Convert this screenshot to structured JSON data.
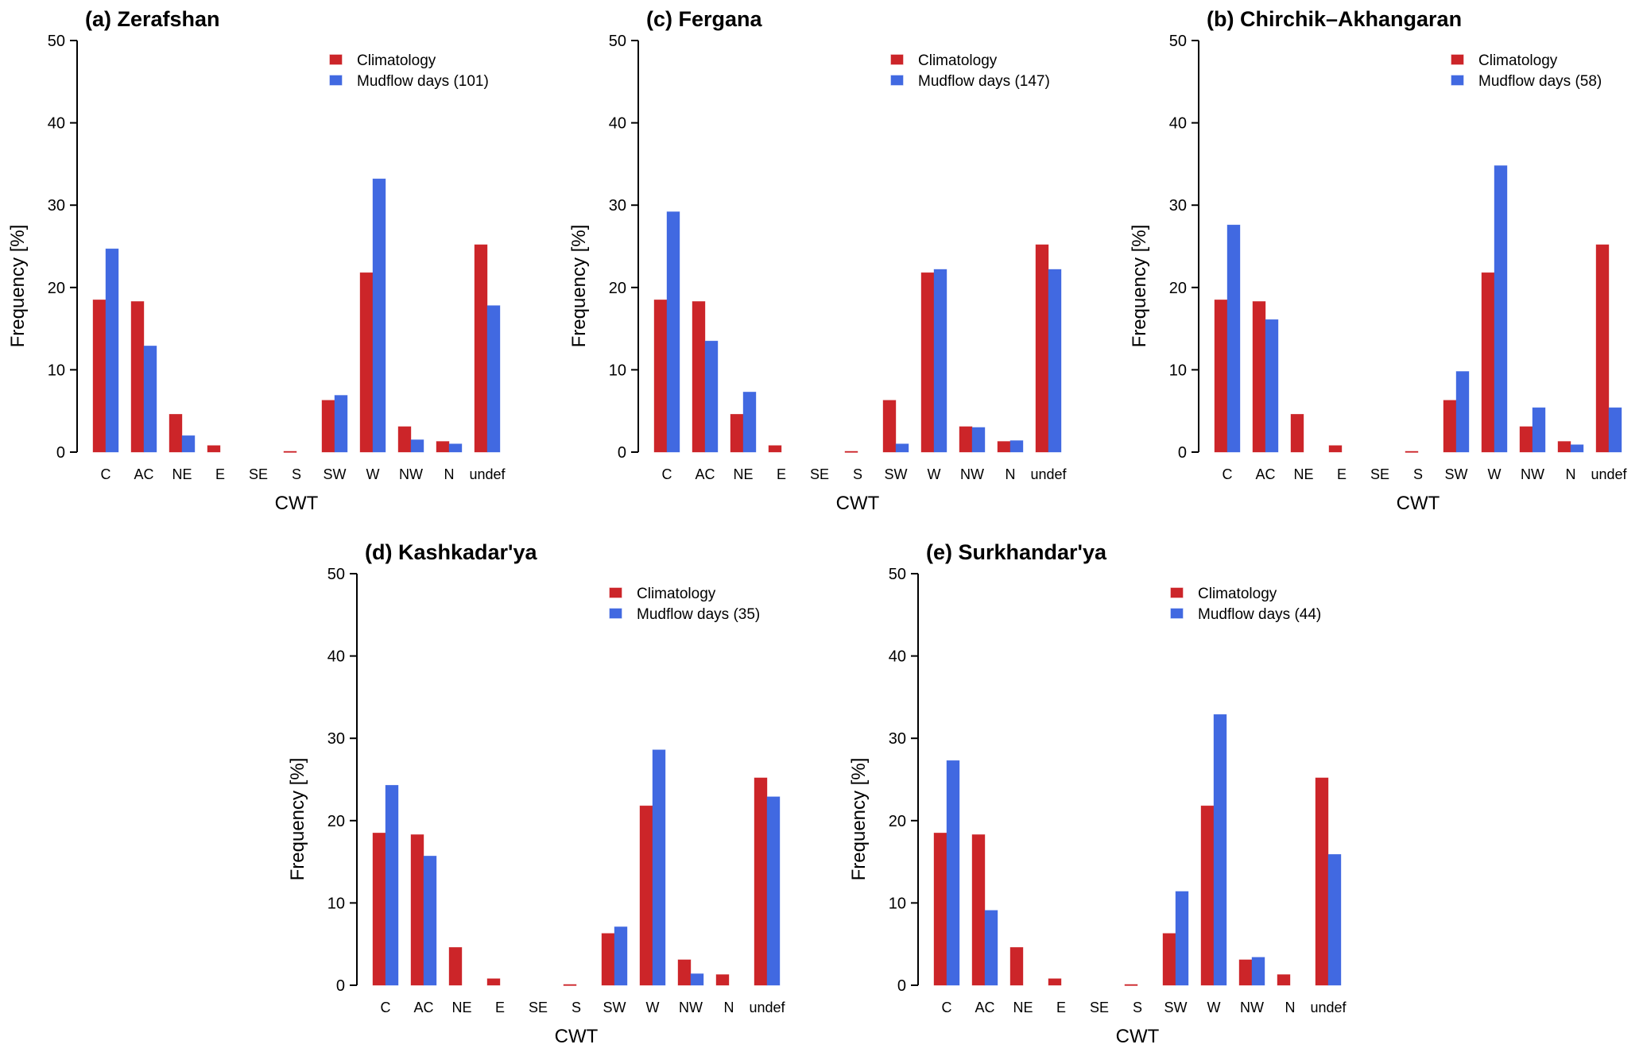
{
  "colors": {
    "climatology": "#cc2529",
    "mudflow": "#4169e1"
  },
  "chart_data": [
    {
      "id": "a",
      "type": "bar",
      "title": "(a) Zerafshan",
      "xlabel": "CWT",
      "ylabel": "Frequency [%]",
      "ylim": [
        0,
        50
      ],
      "yticks": [
        0,
        10,
        20,
        30,
        40,
        50
      ],
      "grid": false,
      "legend_position": "top-right",
      "categories": [
        "C",
        "AC",
        "NE",
        "E",
        "SE",
        "S",
        "SW",
        "W",
        "NW",
        "N",
        "undef"
      ],
      "series": [
        {
          "name": "Climatology",
          "values": [
            18.5,
            18.3,
            4.6,
            0.8,
            0.0,
            0.1,
            6.3,
            21.8,
            3.1,
            1.3,
            25.2
          ]
        },
        {
          "name": "Mudflow days (101)",
          "values": [
            24.7,
            12.9,
            2.0,
            0.0,
            0.0,
            0.0,
            6.9,
            33.2,
            1.5,
            1.0,
            17.8
          ]
        }
      ]
    },
    {
      "id": "c",
      "type": "bar",
      "title": "(c) Fergana",
      "xlabel": "CWT",
      "ylabel": "Frequency [%]",
      "ylim": [
        0,
        50
      ],
      "yticks": [
        0,
        10,
        20,
        30,
        40,
        50
      ],
      "grid": false,
      "legend_position": "top-right",
      "categories": [
        "C",
        "AC",
        "NE",
        "E",
        "SE",
        "S",
        "SW",
        "W",
        "NW",
        "N",
        "undef"
      ],
      "series": [
        {
          "name": "Climatology",
          "values": [
            18.5,
            18.3,
            4.6,
            0.8,
            0.0,
            0.1,
            6.3,
            21.8,
            3.1,
            1.3,
            25.2
          ]
        },
        {
          "name": "Mudflow days (147)",
          "values": [
            29.2,
            13.5,
            7.3,
            0.0,
            0.0,
            0.0,
            1.0,
            22.2,
            3.0,
            1.4,
            22.2
          ]
        }
      ]
    },
    {
      "id": "b",
      "type": "bar",
      "title": "(b) Chirchik–Akhangaran",
      "xlabel": "CWT",
      "ylabel": "Frequency [%]",
      "ylim": [
        0,
        50
      ],
      "yticks": [
        0,
        10,
        20,
        30,
        40,
        50
      ],
      "grid": false,
      "legend_position": "top-right",
      "categories": [
        "C",
        "AC",
        "NE",
        "E",
        "SE",
        "S",
        "SW",
        "W",
        "NW",
        "N",
        "undef"
      ],
      "series": [
        {
          "name": "Climatology",
          "values": [
            18.5,
            18.3,
            4.6,
            0.8,
            0.0,
            0.1,
            6.3,
            21.8,
            3.1,
            1.3,
            25.2
          ]
        },
        {
          "name": "Mudflow days (58)",
          "values": [
            27.6,
            16.1,
            0.0,
            0.0,
            0.0,
            0.0,
            9.8,
            34.8,
            5.4,
            0.9,
            5.4
          ]
        }
      ]
    },
    {
      "id": "d",
      "type": "bar",
      "title": "(d) Kashkadar'ya",
      "xlabel": "CWT",
      "ylabel": "Frequency [%]",
      "ylim": [
        0,
        50
      ],
      "yticks": [
        0,
        10,
        20,
        30,
        40,
        50
      ],
      "grid": false,
      "legend_position": "top-right",
      "categories": [
        "C",
        "AC",
        "NE",
        "E",
        "SE",
        "S",
        "SW",
        "W",
        "NW",
        "N",
        "undef"
      ],
      "series": [
        {
          "name": "Climatology",
          "values": [
            18.5,
            18.3,
            4.6,
            0.8,
            0.0,
            0.1,
            6.3,
            21.8,
            3.1,
            1.3,
            25.2
          ]
        },
        {
          "name": "Mudflow days (35)",
          "values": [
            24.3,
            15.7,
            0.0,
            0.0,
            0.0,
            0.0,
            7.1,
            28.6,
            1.4,
            0.0,
            22.9
          ]
        }
      ]
    },
    {
      "id": "e",
      "type": "bar",
      "title": "(e) Surkhandar'ya",
      "xlabel": "CWT",
      "ylabel": "Frequency [%]",
      "ylim": [
        0,
        50
      ],
      "yticks": [
        0,
        10,
        20,
        30,
        40,
        50
      ],
      "grid": false,
      "legend_position": "top-right",
      "categories": [
        "C",
        "AC",
        "NE",
        "E",
        "SE",
        "S",
        "SW",
        "W",
        "NW",
        "N",
        "undef"
      ],
      "series": [
        {
          "name": "Climatology",
          "values": [
            18.5,
            18.3,
            4.6,
            0.8,
            0.0,
            0.1,
            6.3,
            21.8,
            3.1,
            1.3,
            25.2
          ]
        },
        {
          "name": "Mudflow days (44)",
          "values": [
            27.3,
            9.1,
            0.0,
            0.0,
            0.0,
            0.0,
            11.4,
            32.9,
            3.4,
            0.0,
            15.9
          ]
        }
      ]
    }
  ]
}
